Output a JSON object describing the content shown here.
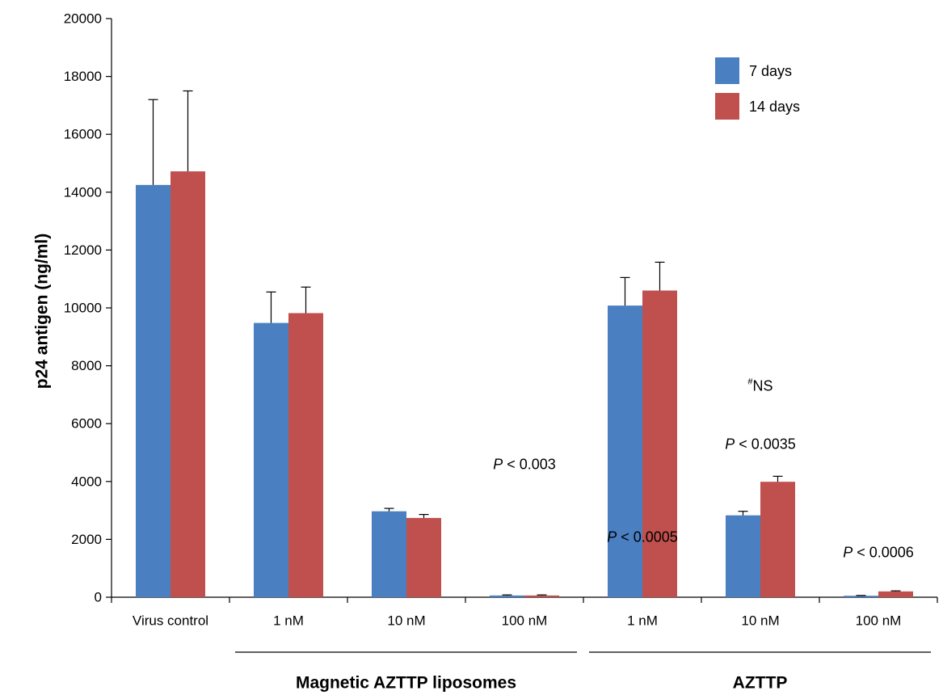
{
  "chart_data": {
    "type": "bar",
    "ylabel": "p24 antigen (ng/ml)",
    "ylim": [
      0,
      20000
    ],
    "yticks": [
      0,
      2000,
      4000,
      6000,
      8000,
      10000,
      12000,
      14000,
      16000,
      18000,
      20000
    ],
    "categories": [
      "Virus control",
      "1 nM",
      "10 nM",
      "100 nM",
      "1 nM",
      "10 nM",
      "100 nM"
    ],
    "groups": [
      {
        "label": "Magnetic AZTTP liposomes",
        "categories": [
          1,
          2,
          3
        ]
      },
      {
        "label": "AZTTP",
        "categories": [
          4,
          5,
          6
        ]
      }
    ],
    "series": [
      {
        "name": "7 days",
        "color": "#4a7fc1",
        "values": [
          14250,
          9480,
          2970,
          60,
          10080,
          2830,
          50
        ],
        "errors": [
          2950,
          1070,
          100,
          20,
          970,
          140,
          10
        ]
      },
      {
        "name": "14 days",
        "color": "#c0504d",
        "values": [
          14720,
          9820,
          2740,
          60,
          10600,
          3990,
          200
        ],
        "errors": [
          2780,
          900,
          120,
          20,
          980,
          190,
          20
        ]
      }
    ],
    "legend": {
      "position": "top-right"
    },
    "annotations": [
      {
        "category": 3,
        "prefix": "P",
        "text": " < 0.003",
        "y": 4600
      },
      {
        "category": 4,
        "prefix": "P",
        "text": " < 0.0005",
        "y": 2080
      },
      {
        "category": 5,
        "prefix": "#",
        "text": "NS",
        "y": 7300
      },
      {
        "category": 5,
        "prefix": "P",
        "text": " < 0.0035",
        "y": 5300
      },
      {
        "category": 6,
        "prefix": "P",
        "text": " < 0.0006",
        "y": 1550
      }
    ]
  }
}
